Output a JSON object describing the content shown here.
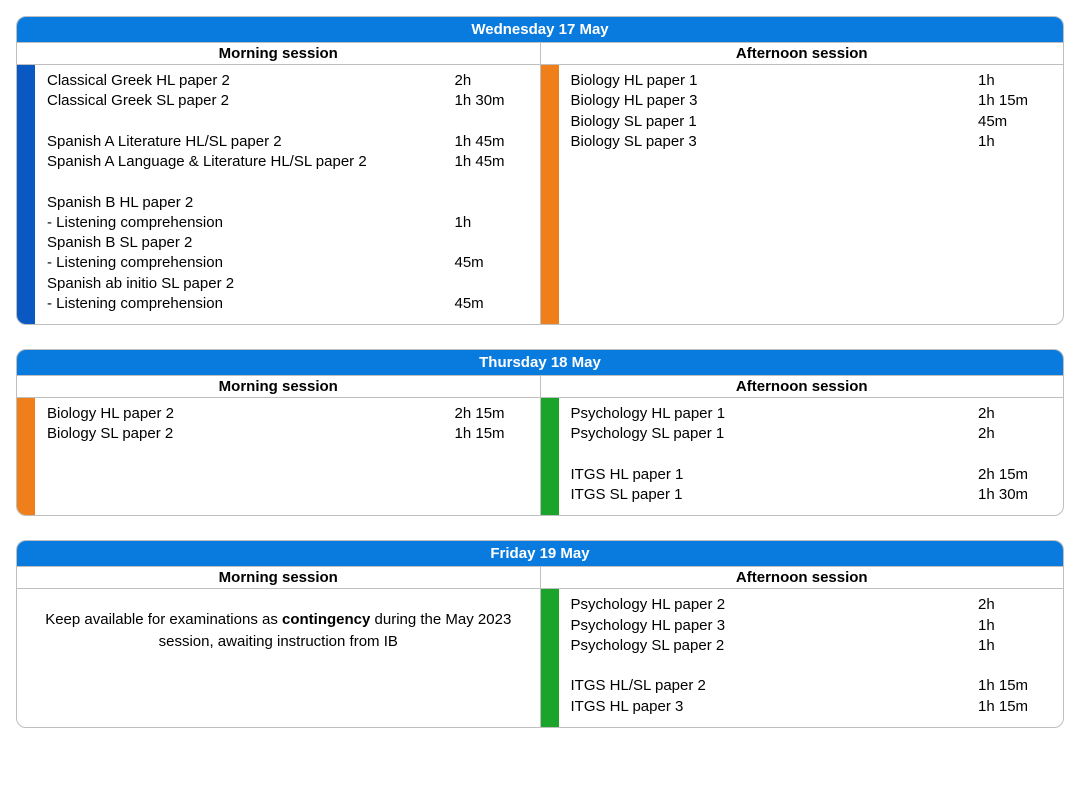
{
  "colors": {
    "header_bg": "#0a7bde",
    "header_text": "#ffffff",
    "border": "#bfbfbf",
    "blue_bar": "#0a59c2",
    "orange_bar": "#ee7f1a",
    "green_bar": "#1aa42a"
  },
  "labels": {
    "morning": "Morning session",
    "afternoon": "Afternoon session"
  },
  "days": [
    {
      "title": "Wednesday 17 May",
      "morning": {
        "bar_color": "#0a59c2",
        "rows": [
          {
            "name": "Classical Greek HL paper 2",
            "dur": "2h"
          },
          {
            "name": "Classical Greek SL paper 2",
            "dur": "1h 30m"
          },
          {
            "gap": true
          },
          {
            "name": "Spanish A Literature HL/SL paper 2",
            "dur": "1h 45m"
          },
          {
            "name": "Spanish A Language & Literature HL/SL paper 2",
            "dur": "1h 45m"
          },
          {
            "gap": true
          },
          {
            "name": "Spanish B HL paper 2",
            "dur": ""
          },
          {
            "name": "- Listening comprehension",
            "dur": "1h"
          },
          {
            "name": "Spanish B SL paper 2",
            "dur": ""
          },
          {
            "name": "- Listening comprehension",
            "dur": "45m"
          },
          {
            "name": "Spanish ab initio SL paper 2",
            "dur": ""
          },
          {
            "name": "- Listening comprehension",
            "dur": "45m"
          }
        ]
      },
      "afternoon": {
        "bar_color": "#ee7f1a",
        "rows": [
          {
            "name": "Biology HL paper 1",
            "dur": "1h"
          },
          {
            "name": "Biology HL paper 3",
            "dur": "1h 15m"
          },
          {
            "name": "Biology SL paper 1",
            "dur": "45m"
          },
          {
            "name": "Biology SL paper 3",
            "dur": "1h"
          }
        ]
      }
    },
    {
      "title": "Thursday 18 May",
      "morning": {
        "bar_color": "#ee7f1a",
        "rows": [
          {
            "name": "Biology HL paper 2",
            "dur": "2h 15m"
          },
          {
            "name": "Biology SL paper 2",
            "dur": "1h 15m"
          },
          {
            "gap": true
          },
          {
            "gap": true
          },
          {
            "gap": true
          }
        ]
      },
      "afternoon": {
        "bar_color": "#1aa42a",
        "rows": [
          {
            "name": "Psychology HL paper 1",
            "dur": "2h"
          },
          {
            "name": "Psychology SL paper 1",
            "dur": "2h"
          },
          {
            "gap": true
          },
          {
            "name": "ITGS HL paper 1",
            "dur": "2h 15m"
          },
          {
            "name": "ITGS SL paper 1",
            "dur": "1h 30m"
          }
        ]
      }
    },
    {
      "title": "Friday 19 May",
      "morning": {
        "bar_color": "",
        "contingency": {
          "pre": "Keep available for examinations as ",
          "bold": "contingency",
          "post": " during the May 2023 session, awaiting instruction from IB"
        }
      },
      "afternoon": {
        "bar_color": "#1aa42a",
        "rows": [
          {
            "name": "Psychology HL paper 2",
            "dur": "2h"
          },
          {
            "name": "Psychology HL paper 3",
            "dur": "1h"
          },
          {
            "name": "Psychology SL paper 2",
            "dur": "1h"
          },
          {
            "gap": true
          },
          {
            "name": "ITGS HL/SL paper 2",
            "dur": "1h 15m"
          },
          {
            "name": "ITGS HL paper 3",
            "dur": "1h 15m"
          }
        ]
      }
    }
  ]
}
